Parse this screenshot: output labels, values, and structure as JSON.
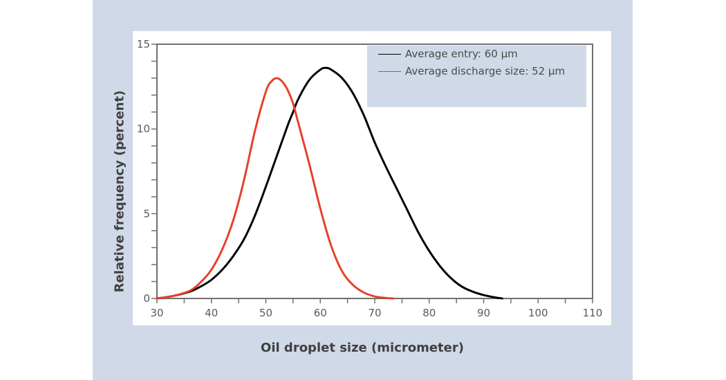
{
  "chart_data": {
    "type": "line",
    "title": "",
    "xlabel": "Oil droplet size (micrometer)",
    "ylabel": "Relative frequency (percent)",
    "xlim": [
      30,
      110
    ],
    "ylim": [
      0,
      15
    ],
    "x_ticks": [
      30,
      40,
      50,
      60,
      70,
      80,
      90,
      100,
      110
    ],
    "x_minor_ticks": [
      35,
      45,
      55,
      65,
      75,
      85,
      95,
      105
    ],
    "y_ticks": [
      0,
      5,
      10,
      15
    ],
    "y_minor_ticks": [
      1,
      2,
      3,
      4,
      6,
      7,
      8,
      9,
      11,
      12,
      13,
      14
    ],
    "grid": false,
    "legend_position": "upper right",
    "series": [
      {
        "name": "Average entry: 60 µm",
        "color": "#000000",
        "x": [
          30,
          33,
          36,
          38,
          40,
          42,
          44,
          46,
          48,
          50,
          52,
          54,
          55,
          56,
          58,
          60,
          61,
          62,
          64,
          66,
          68,
          70,
          72,
          74,
          76,
          78,
          80,
          82,
          84,
          86,
          88,
          90,
          92,
          93.4
        ],
        "y": [
          0,
          0.15,
          0.4,
          0.7,
          1.1,
          1.7,
          2.5,
          3.5,
          4.9,
          6.6,
          8.4,
          10.2,
          11.0,
          11.8,
          12.9,
          13.5,
          13.6,
          13.5,
          13.0,
          12.1,
          10.8,
          9.2,
          7.8,
          6.5,
          5.2,
          3.9,
          2.8,
          1.9,
          1.2,
          0.7,
          0.4,
          0.2,
          0.07,
          0
        ]
      },
      {
        "name": "Average discharge size: 52 µm",
        "color": "#e8402a",
        "x": [
          30,
          33,
          36,
          38,
          40,
          42,
          44,
          46,
          48,
          50,
          51,
          52,
          53,
          54,
          55,
          56,
          58,
          60,
          62,
          64,
          66,
          68,
          70,
          72,
          73.4
        ],
        "y": [
          0,
          0.15,
          0.45,
          0.95,
          1.7,
          2.9,
          4.6,
          7.0,
          9.9,
          12.2,
          12.8,
          13.0,
          12.8,
          12.3,
          11.5,
          10.3,
          7.9,
          5.3,
          3.1,
          1.6,
          0.8,
          0.35,
          0.12,
          0.03,
          0
        ]
      }
    ]
  },
  "legend": {
    "items": [
      {
        "label": "Average entry: 60 µm",
        "color": "#000000"
      },
      {
        "label": "Average discharge size: 52 µm",
        "color": "#e8402a"
      }
    ]
  },
  "axes": {
    "x_title": "Oil droplet size (micrometer)",
    "y_title": "Relative frequency (percent)"
  },
  "colors": {
    "panel_background": "#cfd9e7",
    "plot_background": "#ffffff",
    "axis": "#707070"
  }
}
